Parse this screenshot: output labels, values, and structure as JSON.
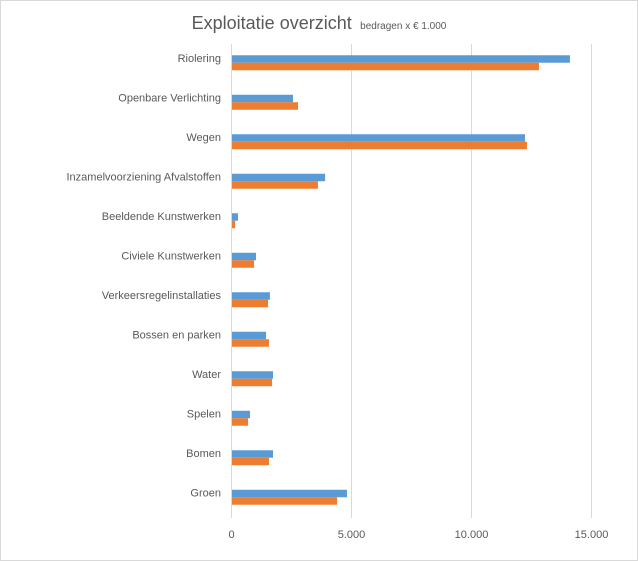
{
  "chart_data": {
    "type": "bar",
    "orientation": "horizontal",
    "title": "Exploitatie  overzicht",
    "subtitle": "bedragen x € 1.000",
    "xlabel": "",
    "ylabel": "",
    "xlim": [
      0,
      15000
    ],
    "xticks": [
      0,
      5000,
      10000,
      15000
    ],
    "xtick_labels": [
      "0",
      "5.000",
      "10.000",
      "15.000"
    ],
    "grid": true,
    "categories": [
      "Riolering",
      "Openbare Verlichting",
      "Wegen",
      "Inzamelvoorziening Afvalstoffen",
      "Beeldende Kunstwerken",
      "Civiele Kunstwerken",
      "Verkeersregelinstallaties",
      "Bossen en parken",
      "Water",
      "Spelen",
      "Bomen",
      "Groen"
    ],
    "series": [
      {
        "color": "#5B9BD5",
        "values": [
          14080,
          2540,
          12210,
          3880,
          250,
          1000,
          1580,
          1420,
          1710,
          750,
          1710,
          4790
        ]
      },
      {
        "color": "#ED7D31",
        "values": [
          12790,
          2750,
          12290,
          3580,
          130,
          920,
          1500,
          1540,
          1670,
          670,
          1540,
          4380
        ]
      }
    ]
  }
}
